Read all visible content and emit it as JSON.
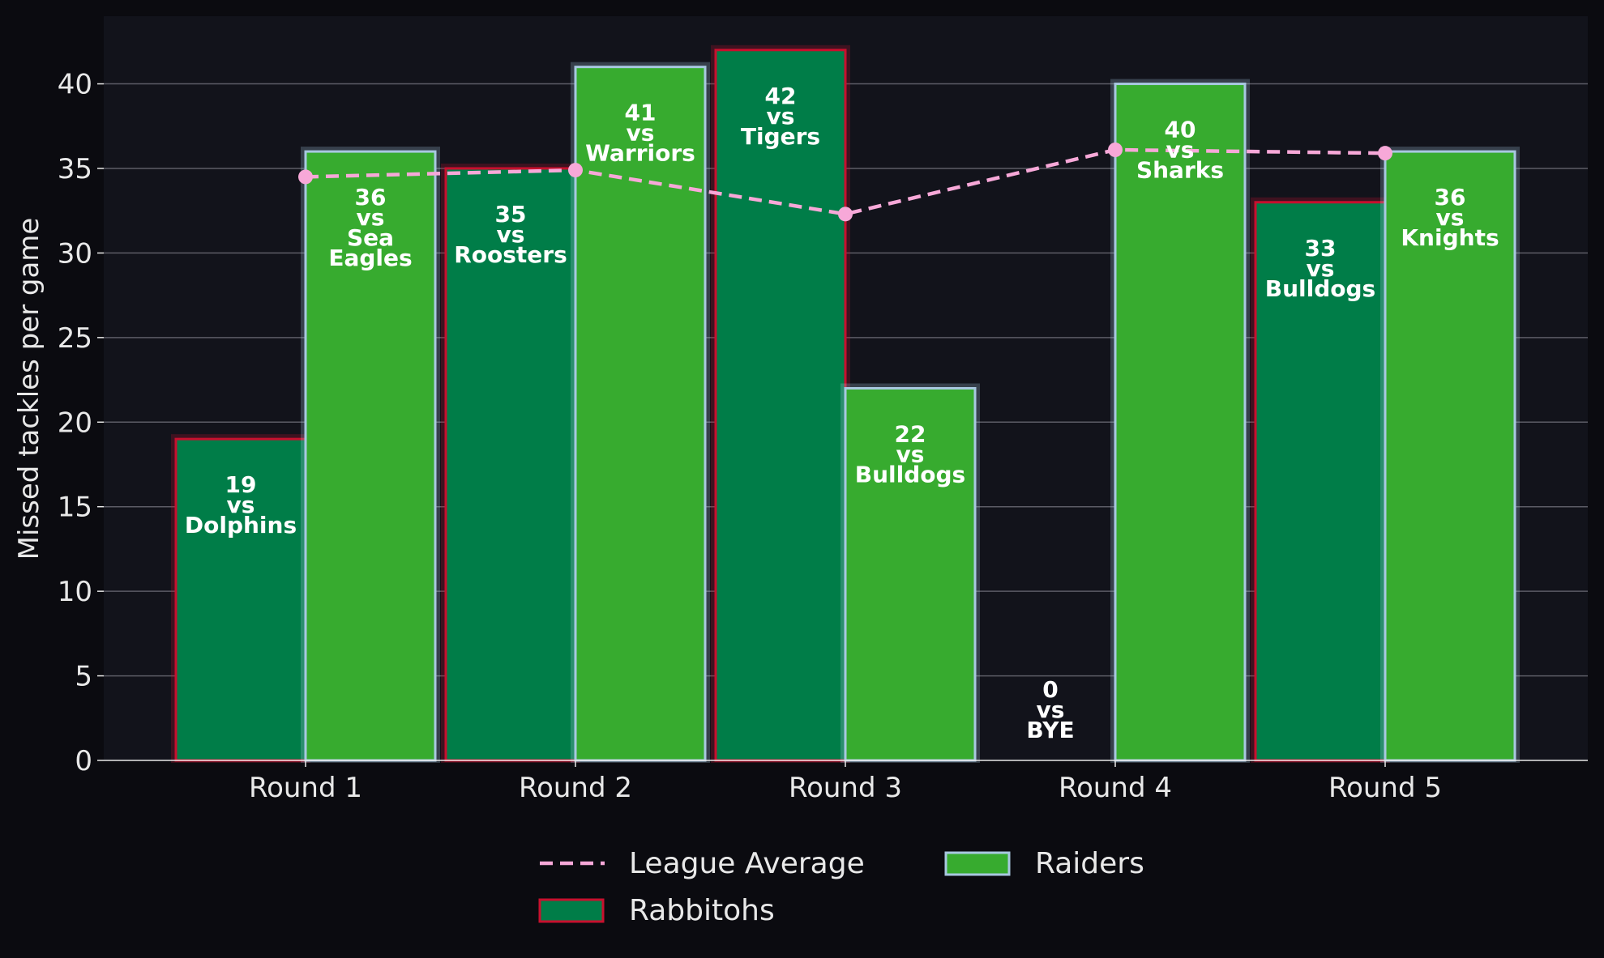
{
  "chart_data": {
    "type": "bar",
    "categories": [
      "Round 1",
      "Round 2",
      "Round 3",
      "Round 4",
      "Round 5"
    ],
    "ylabel": "Missed tackles per game",
    "xlabel": "",
    "title": "",
    "ylim": [
      0,
      44
    ],
    "yticks": [
      0,
      5,
      10,
      15,
      20,
      25,
      30,
      35,
      40
    ],
    "grid": "horizontal",
    "legend_position": "bottom-center",
    "series": [
      {
        "name": "Rabbitohs",
        "kind": "bar",
        "values": [
          19,
          35,
          42,
          0,
          33
        ],
        "opponents": [
          "Dolphins",
          "Roosters",
          "Tigers",
          "BYE",
          "Bulldogs"
        ],
        "fill": "#007d48",
        "edge": "#c8102e"
      },
      {
        "name": "Raiders",
        "kind": "bar",
        "values": [
          36,
          41,
          22,
          40,
          36
        ],
        "opponents": [
          "Sea\nEagles",
          "Warriors",
          "Bulldogs",
          "Sharks",
          "Knights"
        ],
        "fill": "#37ab2f",
        "edge": "#a8c8e0"
      },
      {
        "name": "League Average",
        "kind": "line",
        "values": [
          34.5,
          34.9,
          32.3,
          36.1,
          35.9
        ],
        "color": "#f7a8d8"
      }
    ],
    "vs_word": "vs"
  },
  "colors": {
    "page_background": "#0b0b10",
    "plot_background": "#12131b",
    "grid": "#5c5c66",
    "text": "#e8e8e8",
    "bar_label": "#ffffff"
  }
}
